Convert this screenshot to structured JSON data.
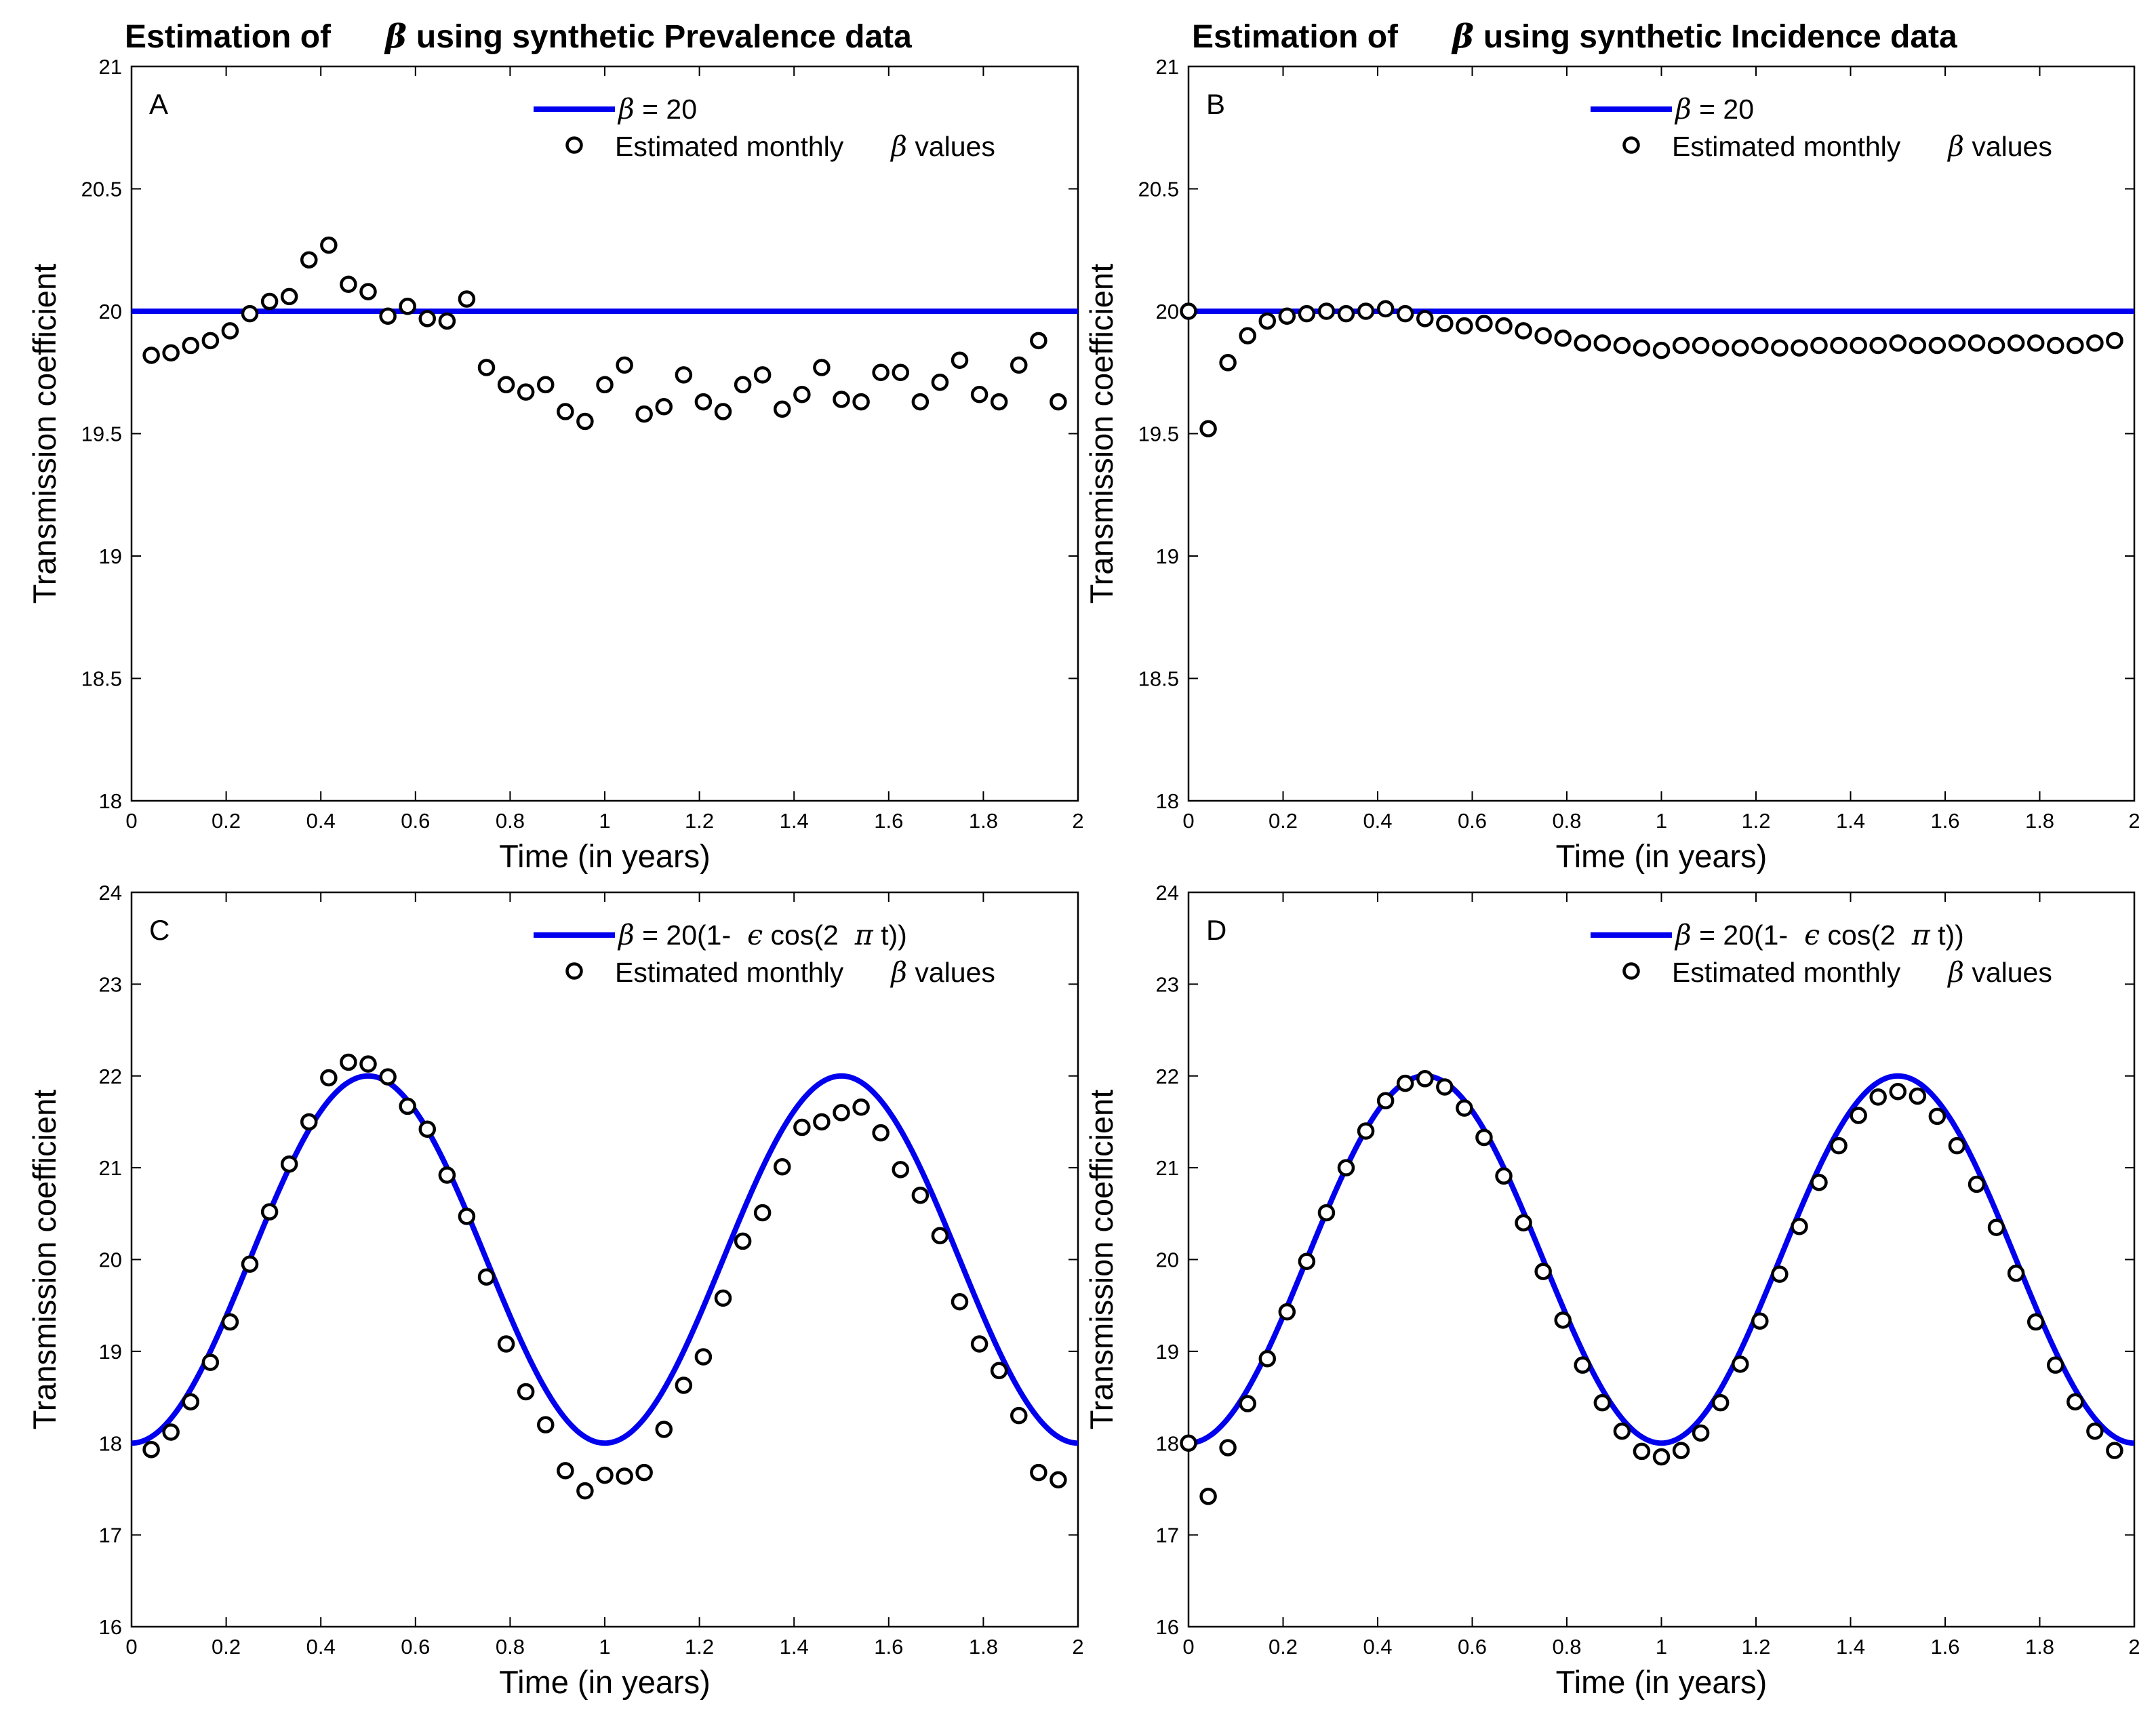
{
  "figure": {
    "title_left_prefix": "Estimation of",
    "title_left_symbol": "β",
    "title_left_suffix": "using synthetic Prevalence data",
    "title_right_prefix": "Estimation of",
    "title_right_symbol": "β",
    "title_right_suffix": "using synthetic Incidence data"
  },
  "chart_data": [
    {
      "id": "A",
      "type": "scatter",
      "panel_label": "A",
      "title": "Estimation of β using synthetic Prevalence data",
      "xlabel": "Time (in years)",
      "ylabel": "Transmission coefficient",
      "xlim": [
        0,
        2
      ],
      "ylim": [
        18,
        21
      ],
      "xticks": [
        0,
        0.2,
        0.4,
        0.6,
        0.8,
        1,
        1.2,
        1.4,
        1.6,
        1.8,
        2
      ],
      "yticks": [
        18,
        18.5,
        19,
        19.5,
        20,
        20.5,
        21
      ],
      "legend_position": "top-right",
      "legend": {
        "line_symbol": "β",
        "line_text": " = 20",
        "marker_text": "Estimated monthly",
        "marker_symbol": "β",
        "marker_suffix": " values"
      },
      "line": {
        "name": "β = 20",
        "color": "#0000ee",
        "kind": "constant",
        "value": 20
      },
      "points": {
        "name": "Estimated monthly β values",
        "x": [
          0.0417,
          0.0833,
          0.125,
          0.1667,
          0.2083,
          0.25,
          0.2917,
          0.3333,
          0.375,
          0.4167,
          0.4583,
          0.5,
          0.5417,
          0.5833,
          0.625,
          0.6667,
          0.7083,
          0.75,
          0.7917,
          0.8333,
          0.875,
          0.9167,
          0.9583,
          1.0,
          1.0417,
          1.0833,
          1.125,
          1.1667,
          1.2083,
          1.25,
          1.2917,
          1.3333,
          1.375,
          1.4167,
          1.4583,
          1.5,
          1.5417,
          1.5833,
          1.625,
          1.6667,
          1.7083,
          1.75,
          1.7917,
          1.8333,
          1.875,
          1.9167,
          1.9583
        ],
        "y": [
          19.82,
          19.83,
          19.86,
          19.88,
          19.92,
          19.99,
          20.04,
          20.06,
          20.21,
          20.27,
          20.11,
          20.08,
          19.98,
          20.02,
          19.97,
          19.96,
          20.05,
          19.77,
          19.7,
          19.67,
          19.7,
          19.59,
          19.55,
          19.7,
          19.78,
          19.58,
          19.61,
          19.74,
          19.63,
          19.59,
          19.7,
          19.74,
          19.6,
          19.66,
          19.77,
          19.64,
          19.63,
          19.75,
          19.75,
          19.63,
          19.71,
          19.8,
          19.66,
          19.63,
          19.78,
          19.88,
          19.63
        ]
      }
    },
    {
      "id": "B",
      "type": "scatter",
      "panel_label": "B",
      "title": "Estimation of β using synthetic Incidence data",
      "xlabel": "Time (in years)",
      "ylabel": "Transmission coefficient",
      "xlim": [
        0,
        2
      ],
      "ylim": [
        18,
        21
      ],
      "xticks": [
        0,
        0.2,
        0.4,
        0.6,
        0.8,
        1,
        1.2,
        1.4,
        1.6,
        1.8,
        2
      ],
      "yticks": [
        18,
        18.5,
        19,
        19.5,
        20,
        20.5,
        21
      ],
      "legend_position": "top-right",
      "legend": {
        "line_symbol": "β",
        "line_text": " = 20",
        "marker_text": "Estimated monthly",
        "marker_symbol": "β",
        "marker_suffix": " values"
      },
      "line": {
        "name": "β = 20",
        "color": "#0000ee",
        "kind": "constant",
        "value": 20
      },
      "points": {
        "name": "Estimated monthly β values",
        "x": [
          0.0,
          0.0417,
          0.0833,
          0.125,
          0.1667,
          0.2083,
          0.25,
          0.2917,
          0.3333,
          0.375,
          0.4167,
          0.4583,
          0.5,
          0.5417,
          0.5833,
          0.625,
          0.6667,
          0.7083,
          0.75,
          0.7917,
          0.8333,
          0.875,
          0.9167,
          0.9583,
          1.0,
          1.0417,
          1.0833,
          1.125,
          1.1667,
          1.2083,
          1.25,
          1.2917,
          1.3333,
          1.375,
          1.4167,
          1.4583,
          1.5,
          1.5417,
          1.5833,
          1.625,
          1.6667,
          1.7083,
          1.75,
          1.7917,
          1.8333,
          1.875,
          1.9167,
          1.9583
        ],
        "y": [
          20.0,
          19.52,
          19.79,
          19.9,
          19.96,
          19.98,
          19.99,
          20.0,
          19.99,
          20.0,
          20.01,
          19.99,
          19.97,
          19.95,
          19.94,
          19.95,
          19.94,
          19.92,
          19.9,
          19.89,
          19.87,
          19.87,
          19.86,
          19.85,
          19.84,
          19.86,
          19.86,
          19.85,
          19.85,
          19.86,
          19.85,
          19.85,
          19.86,
          19.86,
          19.86,
          19.86,
          19.87,
          19.86,
          19.86,
          19.87,
          19.87,
          19.86,
          19.87,
          19.87,
          19.86,
          19.86,
          19.87,
          19.88
        ]
      }
    },
    {
      "id": "C",
      "type": "scatter",
      "panel_label": "C",
      "xlabel": "Time (in years)",
      "ylabel": "Transmission coefficient",
      "xlim": [
        0,
        2
      ],
      "ylim": [
        16,
        24
      ],
      "xticks": [
        0,
        0.2,
        0.4,
        0.6,
        0.8,
        1,
        1.2,
        1.4,
        1.6,
        1.8,
        2
      ],
      "yticks": [
        16,
        17,
        18,
        19,
        20,
        21,
        22,
        23,
        24
      ],
      "legend_position": "top-right",
      "legend": {
        "line_symbol": "β",
        "line_text": " = 20(1-",
        "line_symbol2": "ϵ",
        "line_text2": " cos(2",
        "line_symbol3": "π",
        "line_text3": " t))",
        "marker_text": "Estimated monthly",
        "marker_symbol": "β",
        "marker_suffix": " values"
      },
      "line": {
        "name": "β = 20(1- ϵ cos(2 π t))",
        "color": "#0000ee",
        "kind": "cosine",
        "base": 20,
        "epsilon": 0.1
      },
      "points": {
        "name": "Estimated monthly β values",
        "x": [
          0.0417,
          0.0833,
          0.125,
          0.1667,
          0.2083,
          0.25,
          0.2917,
          0.3333,
          0.375,
          0.4167,
          0.4583,
          0.5,
          0.5417,
          0.5833,
          0.625,
          0.6667,
          0.7083,
          0.75,
          0.7917,
          0.8333,
          0.875,
          0.9167,
          0.9583,
          1.0,
          1.0417,
          1.0833,
          1.125,
          1.1667,
          1.2083,
          1.25,
          1.2917,
          1.3333,
          1.375,
          1.4167,
          1.4583,
          1.5,
          1.5417,
          1.5833,
          1.625,
          1.6667,
          1.7083,
          1.75,
          1.7917,
          1.8333,
          1.875,
          1.9167,
          1.9583
        ],
        "y": [
          17.93,
          18.12,
          18.45,
          18.88,
          19.32,
          19.95,
          20.52,
          21.04,
          21.5,
          21.98,
          22.15,
          22.13,
          21.99,
          21.67,
          21.42,
          20.92,
          20.47,
          19.81,
          19.08,
          18.56,
          18.2,
          17.7,
          17.48,
          17.65,
          17.64,
          17.68,
          18.15,
          18.63,
          18.94,
          19.58,
          20.2,
          20.51,
          21.01,
          21.44,
          21.5,
          21.6,
          21.66,
          21.38,
          20.98,
          20.7,
          20.26,
          19.54,
          19.08,
          18.79,
          18.3,
          17.68,
          17.6
        ]
      }
    },
    {
      "id": "D",
      "type": "scatter",
      "panel_label": "D",
      "xlabel": "Time (in years)",
      "ylabel": "Transmission coefficient",
      "xlim": [
        0,
        2
      ],
      "ylim": [
        16,
        24
      ],
      "xticks": [
        0,
        0.2,
        0.4,
        0.6,
        0.8,
        1,
        1.2,
        1.4,
        1.6,
        1.8,
        2
      ],
      "yticks": [
        16,
        17,
        18,
        19,
        20,
        21,
        22,
        23,
        24
      ],
      "legend_position": "top-right",
      "legend": {
        "line_symbol": "β",
        "line_text": " = 20(1-",
        "line_symbol2": "ϵ",
        "line_text2": " cos(2",
        "line_symbol3": "π",
        "line_text3": " t))",
        "marker_text": "Estimated monthly",
        "marker_symbol": "β",
        "marker_suffix": " values"
      },
      "line": {
        "name": "β = 20(1- ϵ cos(2 π t))",
        "color": "#0000ee",
        "kind": "cosine",
        "base": 20,
        "epsilon": 0.1
      },
      "points": {
        "name": "Estimated monthly β values",
        "x": [
          0.0,
          0.0417,
          0.0833,
          0.125,
          0.1667,
          0.2083,
          0.25,
          0.2917,
          0.3333,
          0.375,
          0.4167,
          0.4583,
          0.5,
          0.5417,
          0.5833,
          0.625,
          0.6667,
          0.7083,
          0.75,
          0.7917,
          0.8333,
          0.875,
          0.9167,
          0.9583,
          1.0,
          1.0417,
          1.0833,
          1.125,
          1.1667,
          1.2083,
          1.25,
          1.2917,
          1.3333,
          1.375,
          1.4167,
          1.4583,
          1.5,
          1.5417,
          1.5833,
          1.625,
          1.6667,
          1.7083,
          1.75,
          1.7917,
          1.8333,
          1.875,
          1.9167,
          1.9583
        ],
        "y": [
          18.0,
          17.42,
          17.95,
          18.43,
          18.92,
          19.43,
          19.98,
          20.51,
          21.0,
          21.4,
          21.73,
          21.92,
          21.97,
          21.88,
          21.65,
          21.33,
          20.91,
          20.4,
          19.87,
          19.34,
          18.85,
          18.44,
          18.13,
          17.91,
          17.85,
          17.92,
          18.11,
          18.44,
          18.86,
          19.33,
          19.84,
          20.36,
          20.84,
          21.24,
          21.57,
          21.77,
          21.83,
          21.78,
          21.56,
          21.24,
          20.82,
          20.35,
          19.85,
          19.32,
          18.85,
          18.45,
          18.13,
          17.92
        ]
      }
    }
  ]
}
